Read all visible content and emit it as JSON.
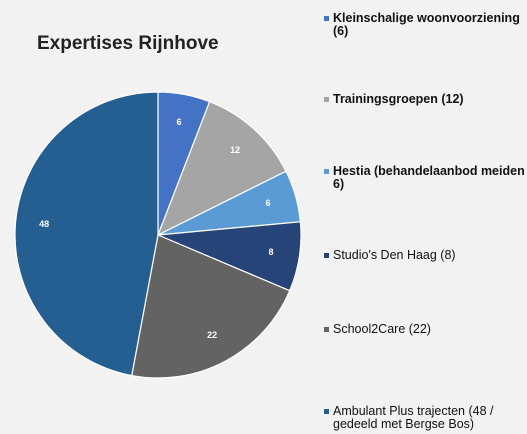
{
  "chart_data": {
    "type": "pie",
    "title": "Expertises Rijnhove",
    "categories": [
      "Kleinschalige woonvoorziening (6)",
      "Trainingsgroepen (12)",
      "Hestia (behandelaanbod meiden 6)",
      "Studio's Den Haag (8)",
      "School2Care (22)",
      "Ambulant Plus trajecten (48 / gedeeld met Bergse Bos)"
    ],
    "values": [
      6,
      12,
      6,
      8,
      22,
      48
    ],
    "colors": [
      "#4472c4",
      "#a5a5a5",
      "#5b9bd5",
      "#264478",
      "#636363",
      "#255e91"
    ],
    "legend_bold": [
      true,
      true,
      true,
      false,
      false,
      false
    ],
    "legend": "right"
  }
}
